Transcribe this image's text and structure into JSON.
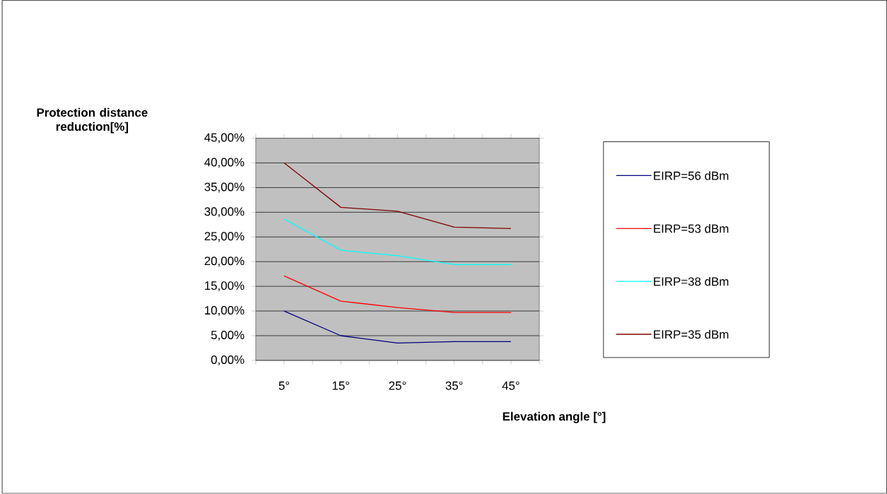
{
  "chart_data": {
    "type": "line",
    "xlabel": "Elevation angle [°]",
    "ylabel": "Protection distance reduction[%]",
    "categories": [
      "5°",
      "15°",
      "25°",
      "35°",
      "45°"
    ],
    "series": [
      {
        "name": "EIRP=56 dBm",
        "color": "#000080",
        "values": [
          10,
          5,
          3.5,
          3.8,
          3.8
        ]
      },
      {
        "name": "EIRP=53 dBm",
        "color": "#ff0000",
        "values": [
          17.1,
          12,
          10.7,
          9.7,
          9.7
        ]
      },
      {
        "name": "EIRP=38 dBm",
        "color": "#00ffff",
        "values": [
          28.6,
          22.3,
          21.2,
          19.4,
          19.4
        ]
      },
      {
        "name": "EIRP=35 dBm",
        "color": "#800000",
        "values": [
          40,
          31,
          30.2,
          27,
          26.7
        ]
      }
    ],
    "ylim": [
      0,
      45
    ],
    "yticks": [
      {
        "value": 0,
        "label": "0,00%"
      },
      {
        "value": 5,
        "label": "5,00%"
      },
      {
        "value": 10,
        "label": "10,00%"
      },
      {
        "value": 15,
        "label": "15,00%"
      },
      {
        "value": 20,
        "label": "20,00%"
      },
      {
        "value": 25,
        "label": "25,00%"
      },
      {
        "value": 30,
        "label": "30,00%"
      },
      {
        "value": 35,
        "label": "35,00%"
      },
      {
        "value": 40,
        "label": "40,00%"
      },
      {
        "value": 45,
        "label": "45,00%"
      }
    ],
    "grid": "y",
    "legend": "right",
    "marker": "none",
    "line_style": "solid"
  }
}
